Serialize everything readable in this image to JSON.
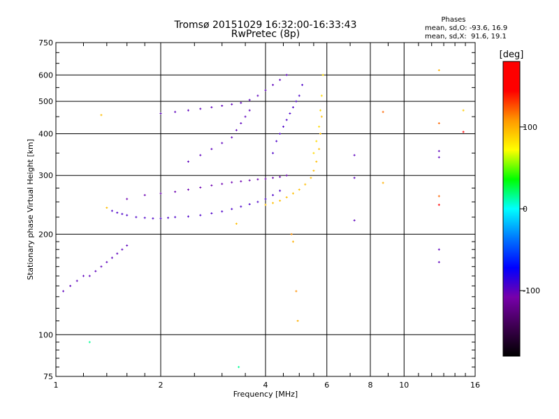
{
  "chart_data": {
    "type": "scatter",
    "title": "Tromsø 20151029 16:32:00-16:33:43",
    "subtitle": "RwPretec (8p)",
    "xlabel": "Frequency [MHz]",
    "ylabel": "Stationary phase Virtual Height [km]",
    "xscale": "log",
    "yscale": "log",
    "xlim": [
      1,
      16
    ],
    "ylim": [
      75,
      750
    ],
    "x_ticks": [
      1,
      2,
      4,
      6,
      8,
      10,
      16
    ],
    "x_tick_labels": [
      "1",
      "2",
      "4",
      "6",
      "8",
      "10",
      "16"
    ],
    "y_ticks": [
      75,
      100,
      200,
      300,
      400,
      500,
      600,
      750
    ],
    "y_tick_labels": [
      "75",
      "100",
      "200",
      "300",
      "400",
      "500",
      "600",
      "750"
    ],
    "grid": true,
    "phase_info": {
      "heading": "Phases",
      "line_o": "mean, sd,O: -93.6, 16.9",
      "line_x": "mean, sd,X:  91.6, 19.1"
    },
    "colorbar": {
      "label": "[deg]",
      "range": [
        -180,
        180
      ],
      "ticks": [
        100,
        0,
        -100
      ],
      "tick_labels": [
        "100",
        "0",
        "-100"
      ],
      "colormap": [
        "#000000",
        "#3d0050",
        "#7700aa",
        "#0000ff",
        "#0077ff",
        "#00ffff",
        "#00ff00",
        "#ffff00",
        "#ff9900",
        "#ff0000",
        "#ff0000"
      ]
    },
    "traces": [
      {
        "mode": "O",
        "phase_deg": -100,
        "x": [
          1.05,
          1.1,
          1.15,
          1.2,
          1.25,
          1.3,
          1.35,
          1.4,
          1.45,
          1.5,
          1.55,
          1.6
        ],
        "y": [
          135,
          140,
          145,
          150,
          150,
          155,
          160,
          165,
          170,
          175,
          180,
          185
        ]
      },
      {
        "mode": "O",
        "phase_deg": -95,
        "x": [
          1.45,
          1.5,
          1.55,
          1.6,
          1.7,
          1.8,
          1.9,
          2.0,
          2.1,
          2.2,
          2.4,
          2.6,
          2.8,
          3.0,
          3.2,
          3.4,
          3.6,
          3.8,
          4.0,
          4.2,
          4.4
        ],
        "y": [
          235,
          232,
          230,
          228,
          225,
          224,
          223,
          223,
          224,
          225,
          226,
          228,
          231,
          234,
          238,
          242,
          246,
          250,
          255,
          262,
          270
        ]
      },
      {
        "mode": "O",
        "phase_deg": -105,
        "x": [
          1.6,
          1.8,
          2.0,
          2.2,
          2.4,
          2.6,
          2.8,
          3.0,
          3.2,
          3.4,
          3.6,
          3.8,
          4.0,
          4.2,
          4.4,
          4.6
        ],
        "y": [
          255,
          262,
          265,
          268,
          272,
          276,
          280,
          283,
          286,
          288,
          290,
          292,
          293,
          295,
          297,
          300
        ]
      },
      {
        "mode": "O",
        "phase_deg": -100,
        "x": [
          2.0,
          2.2,
          2.4,
          2.6,
          2.8,
          3.0,
          3.2,
          3.4,
          3.6,
          3.8,
          4.0,
          4.2,
          4.4,
          4.6
        ],
        "y": [
          460,
          465,
          470,
          475,
          480,
          485,
          490,
          495,
          505,
          520,
          540,
          560,
          580,
          600
        ]
      },
      {
        "mode": "O",
        "phase_deg": -100,
        "x": [
          2.4,
          2.6,
          2.8,
          3.0,
          3.2,
          3.3,
          3.4,
          3.5,
          3.6
        ],
        "y": [
          330,
          345,
          360,
          375,
          390,
          410,
          430,
          450,
          470
        ]
      },
      {
        "mode": "O",
        "phase_deg": -95,
        "x": [
          4.2,
          4.3,
          4.4,
          4.5,
          4.6,
          4.7,
          4.8,
          4.9,
          5.0,
          5.1
        ],
        "y": [
          350,
          380,
          400,
          420,
          440,
          460,
          480,
          500,
          520,
          560
        ]
      },
      {
        "mode": "X",
        "phase_deg": 95,
        "x": [
          4.0,
          4.2,
          4.4,
          4.6,
          4.8,
          5.0,
          5.2,
          5.4,
          5.5,
          5.6,
          5.7,
          5.75,
          5.8
        ],
        "y": [
          245,
          248,
          252,
          258,
          265,
          272,
          282,
          295,
          310,
          330,
          360,
          400,
          450
        ]
      },
      {
        "mode": "X",
        "phase_deg": 85,
        "x": [
          5.5,
          5.6,
          5.7,
          5.75,
          5.8,
          5.85
        ],
        "y": [
          350,
          380,
          420,
          470,
          520,
          600
        ]
      }
    ],
    "scattered_points": [
      {
        "x": 1.35,
        "y": 455,
        "phase_deg": 95
      },
      {
        "x": 1.4,
        "y": 240,
        "phase_deg": 95
      },
      {
        "x": 1.25,
        "y": 95,
        "phase_deg": 15
      },
      {
        "x": 3.3,
        "y": 215,
        "phase_deg": 95
      },
      {
        "x": 3.35,
        "y": 80,
        "phase_deg": 15
      },
      {
        "x": 7.2,
        "y": 345,
        "phase_deg": -100
      },
      {
        "x": 7.2,
        "y": 295,
        "phase_deg": -100
      },
      {
        "x": 7.2,
        "y": 220,
        "phase_deg": -100
      },
      {
        "x": 8.7,
        "y": 465,
        "phase_deg": 120
      },
      {
        "x": 8.7,
        "y": 285,
        "phase_deg": 100
      },
      {
        "x": 12.6,
        "y": 620,
        "phase_deg": 100
      },
      {
        "x": 12.6,
        "y": 430,
        "phase_deg": 120
      },
      {
        "x": 12.6,
        "y": 355,
        "phase_deg": -100
      },
      {
        "x": 12.6,
        "y": 340,
        "phase_deg": -100
      },
      {
        "x": 12.6,
        "y": 260,
        "phase_deg": 120
      },
      {
        "x": 12.6,
        "y": 245,
        "phase_deg": 150
      },
      {
        "x": 12.6,
        "y": 180,
        "phase_deg": -100
      },
      {
        "x": 12.6,
        "y": 165,
        "phase_deg": -100
      },
      {
        "x": 14.8,
        "y": 470,
        "phase_deg": 90
      },
      {
        "x": 14.8,
        "y": 405,
        "phase_deg": 150
      },
      {
        "x": 4.9,
        "y": 135,
        "phase_deg": 110
      },
      {
        "x": 4.95,
        "y": 110,
        "phase_deg": 100
      },
      {
        "x": 4.8,
        "y": 190,
        "phase_deg": 100
      },
      {
        "x": 4.75,
        "y": 200,
        "phase_deg": 110
      }
    ]
  }
}
